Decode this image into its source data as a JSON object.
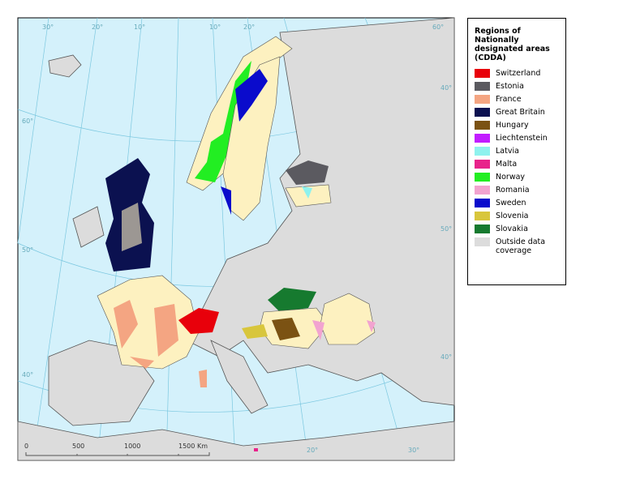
{
  "map": {
    "graticule_labels": {
      "top": [
        "30°",
        "20°",
        "10°",
        "10°",
        "20°",
        "60°"
      ],
      "left": [
        "60°",
        "50°",
        "40°"
      ],
      "right": [
        "40°",
        "50°",
        "40°"
      ],
      "bottom": [
        "20°",
        "30°"
      ]
    },
    "scale_bar": {
      "labels": [
        "0",
        "500",
        "1000",
        "1500"
      ],
      "unit": "Km"
    },
    "legend": {
      "title": "Regions of Nationally designated areas (CDDA)",
      "items": [
        {
          "name": "Switzerland",
          "color": "#e8000b"
        },
        {
          "name": "Estonia",
          "color": "#5b5a60"
        },
        {
          "name": "France",
          "color": "#f4a582"
        },
        {
          "name": "Great Britain",
          "color": "#0b1150"
        },
        {
          "name": "Hungary",
          "color": "#7b5213"
        },
        {
          "name": "Liechtenstein",
          "color": "#c21cff"
        },
        {
          "name": "Latvia",
          "color": "#8ff2ee"
        },
        {
          "name": "Malta",
          "color": "#e8238b"
        },
        {
          "name": "Norway",
          "color": "#22ee22"
        },
        {
          "name": "Romania",
          "color": "#f2a3d0"
        },
        {
          "name": "Sweden",
          "color": "#0a0bcc"
        },
        {
          "name": "Slovenia",
          "color": "#d8c63c"
        },
        {
          "name": "Slovakia",
          "color": "#167a2f"
        },
        {
          "name": "Outside data coverage",
          "color": "#dcdcdc"
        }
      ]
    }
  }
}
